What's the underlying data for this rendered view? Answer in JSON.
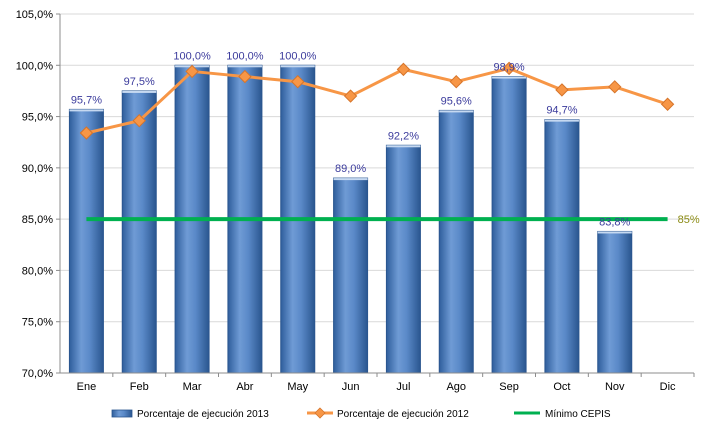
{
  "chart_data": {
    "type": "bar",
    "categories": [
      "Ene",
      "Feb",
      "Mar",
      "Abr",
      "May",
      "Jun",
      "Jul",
      "Ago",
      "Sep",
      "Oct",
      "Nov",
      "Dic"
    ],
    "ylim": [
      70,
      105
    ],
    "yticks": [
      70,
      75,
      80,
      85,
      90,
      95,
      100,
      105
    ],
    "ytick_labels": [
      "70,0%",
      "75,0%",
      "80,0%",
      "85,0%",
      "90,0%",
      "95,0%",
      "100,0%",
      "105,0%"
    ],
    "grid": "horizontal",
    "legend_position": "bottom",
    "series": [
      {
        "name": "Porcentaje de ejecución 2013",
        "type": "bar",
        "color": "#4f81bd",
        "values": [
          95.7,
          97.5,
          100.0,
          100.0,
          100.0,
          89.0,
          92.2,
          95.6,
          98.9,
          94.7,
          83.8,
          null
        ],
        "labels": [
          "95,7%",
          "97,5%",
          "100,0%",
          "100,0%",
          "100,0%",
          "89,0%",
          "92,2%",
          "95,6%",
          "98,9%",
          "94,7%",
          "83,8%",
          ""
        ]
      },
      {
        "name": "Porcentaje de ejecución 2012",
        "type": "line",
        "color": "#f79646",
        "values": [
          93.4,
          94.6,
          99.4,
          98.9,
          98.4,
          97.0,
          99.6,
          98.4,
          99.7,
          97.6,
          97.9,
          96.2
        ]
      },
      {
        "name": "Mínimo CEPIS",
        "type": "line",
        "color": "#00b050",
        "values": [
          85,
          85,
          85,
          85,
          85,
          85,
          85,
          85,
          85,
          85,
          85,
          85
        ],
        "end_label": "85%"
      }
    ]
  }
}
